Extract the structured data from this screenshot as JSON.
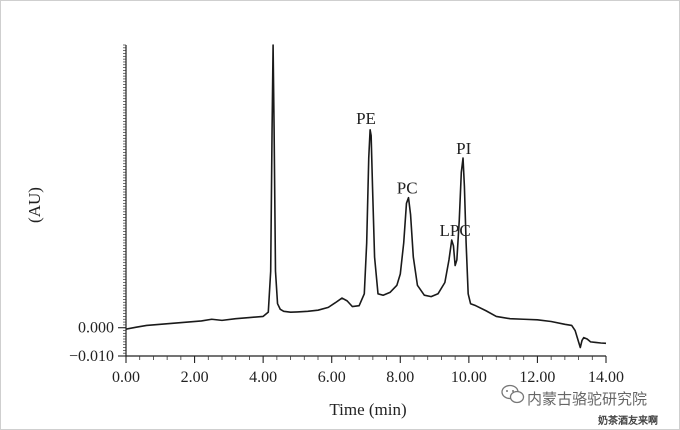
{
  "chart_data": {
    "type": "line",
    "title": "",
    "xlabel": "Time (min)",
    "ylabel": "(AU)",
    "xlim": [
      0,
      14
    ],
    "ylim": [
      -0.01,
      0.1
    ],
    "x_ticks": [
      "0.00",
      "2.00",
      "4.00",
      "6.00",
      "8.00",
      "10.00",
      "12.00",
      "14.00"
    ],
    "y_ticks": [
      {
        "value": 0.0,
        "label": "0.000"
      },
      {
        "value": -0.01,
        "label": "−0.010"
      }
    ],
    "grid": false,
    "series": [
      {
        "x": [
          0.0,
          0.3,
          0.6,
          1.0,
          1.4,
          1.8,
          2.2,
          2.5,
          2.8,
          3.2,
          3.6,
          4.0,
          4.15,
          4.22,
          4.26,
          4.29,
          4.32,
          4.36,
          4.42,
          4.5,
          4.6,
          4.8,
          5.0,
          5.3,
          5.6,
          5.9,
          6.1,
          6.3,
          6.45,
          6.6,
          6.8,
          6.95,
          7.02,
          7.08,
          7.12,
          7.15,
          7.19,
          7.25,
          7.35,
          7.5,
          7.7,
          7.9,
          8.0,
          8.1,
          8.18,
          8.24,
          8.3,
          8.38,
          8.5,
          8.7,
          8.9,
          9.1,
          9.3,
          9.42,
          9.5,
          9.55,
          9.6,
          9.65,
          9.72,
          9.78,
          9.83,
          9.87,
          9.92,
          9.98,
          10.05,
          10.2,
          10.5,
          10.8,
          11.2,
          11.6,
          12.0,
          12.4,
          12.8,
          13.0,
          13.1,
          13.2,
          13.25,
          13.3,
          13.35,
          13.45,
          13.55,
          13.7,
          13.85,
          14.0
        ],
        "y": [
          -0.0005,
          0.0002,
          0.0008,
          0.0012,
          0.0016,
          0.002,
          0.0024,
          0.003,
          0.0026,
          0.0032,
          0.0036,
          0.004,
          0.0055,
          0.02,
          0.07,
          0.1,
          0.07,
          0.02,
          0.0085,
          0.0065,
          0.0058,
          0.0055,
          0.0056,
          0.0058,
          0.0062,
          0.0072,
          0.0088,
          0.0105,
          0.0095,
          0.0075,
          0.0078,
          0.012,
          0.03,
          0.06,
          0.07,
          0.068,
          0.05,
          0.025,
          0.012,
          0.0115,
          0.0125,
          0.015,
          0.019,
          0.03,
          0.044,
          0.046,
          0.04,
          0.025,
          0.015,
          0.0115,
          0.011,
          0.012,
          0.016,
          0.024,
          0.031,
          0.029,
          0.022,
          0.024,
          0.038,
          0.055,
          0.06,
          0.05,
          0.03,
          0.012,
          0.0085,
          0.0078,
          0.006,
          0.004,
          0.0032,
          0.003,
          0.0028,
          0.0022,
          0.0012,
          0.0008,
          -0.001,
          -0.005,
          -0.007,
          -0.0045,
          -0.0035,
          -0.004,
          -0.005,
          -0.0052,
          -0.0054,
          -0.0055
        ]
      }
    ],
    "annotations": [
      {
        "text": "PE",
        "x": 7.0,
        "y": 0.072
      },
      {
        "text": "PC",
        "x": 8.2,
        "y": 0.0475
      },
      {
        "text": "LPC",
        "x": 9.6,
        "y": 0.0325
      },
      {
        "text": "PI",
        "x": 9.85,
        "y": 0.0615
      }
    ]
  },
  "watermark": {
    "text": "内蒙古骆驼研究院",
    "icon": "wechat-icon",
    "bottom_text": "奶茶酒友来啊"
  }
}
